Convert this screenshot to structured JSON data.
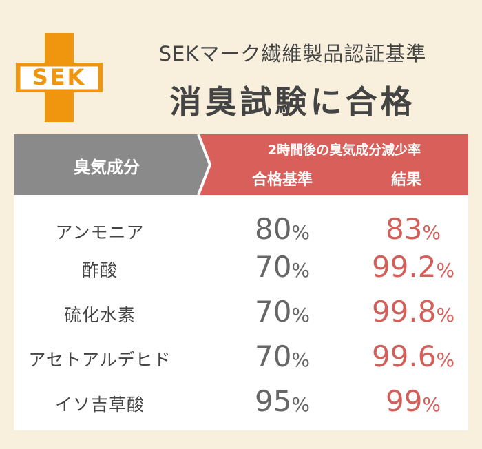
{
  "logo": "SEK",
  "header": {
    "title": "SEKマーク繊維製品認証基準",
    "subtitle": "消臭試験に合格"
  },
  "table": {
    "columns": {
      "name": "臭気成分",
      "group": "2時間後の臭気成分減少率",
      "standard": "合格基準",
      "result": "結果"
    },
    "rows": [
      {
        "name": "アンモニア",
        "standard": {
          "value": "80",
          "unit": "%"
        },
        "result": {
          "value": "83",
          "unit": "%"
        }
      },
      {
        "name": "酢酸",
        "standard": {
          "value": "70",
          "unit": "%"
        },
        "result": {
          "value": "99.2",
          "unit": "%"
        }
      },
      {
        "name": "硫化水素",
        "standard": {
          "value": "70",
          "unit": "%"
        },
        "result": {
          "value": "99.8",
          "unit": "%"
        }
      },
      {
        "name": "アセトアルデヒド",
        "standard": {
          "value": "70",
          "unit": "%"
        },
        "result": {
          "value": "99.6",
          "unit": "%"
        }
      },
      {
        "name": "イソ吉草酸",
        "standard": {
          "value": "95",
          "unit": "%"
        },
        "result": {
          "value": "99",
          "unit": "%"
        }
      }
    ]
  }
}
